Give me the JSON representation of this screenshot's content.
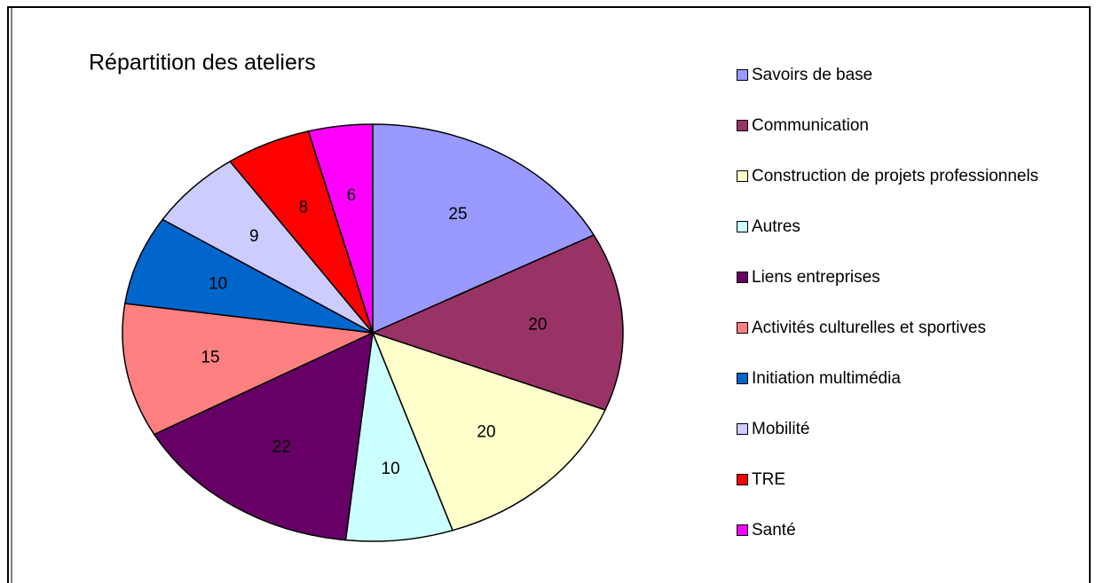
{
  "chart_data": {
    "type": "pie",
    "title": "Répartition des ateliers",
    "categories": [
      "Savoirs de base",
      "Communication",
      "Construction de projets professionnels",
      "Autres",
      "Liens entreprises",
      "Activités culturelles et sportives",
      "Initiation multimédia",
      "Mobilité",
      "TRE",
      "Santé"
    ],
    "values": [
      25,
      20,
      20,
      10,
      22,
      15,
      10,
      9,
      8,
      6
    ],
    "colors": [
      "#9999ff",
      "#993366",
      "#ffffcc",
      "#ccffff",
      "#660066",
      "#ff8080",
      "#0066cc",
      "#ccccff",
      "#ff0000",
      "#ff00ff"
    ],
    "legend": "right"
  }
}
